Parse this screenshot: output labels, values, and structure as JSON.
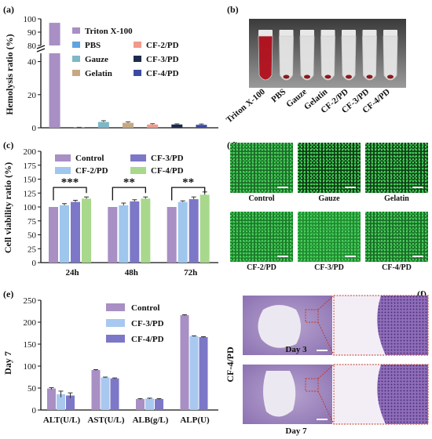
{
  "panels": {
    "a": "(a)",
    "b": "(b)",
    "c": "(c)",
    "d": "(d)",
    "e": "(e)",
    "f": "(f)"
  },
  "colors": {
    "triton": "#a88fc4",
    "pbs": "#5ea4e0",
    "cf2": "#f19a8a",
    "gauze": "#7eb7c7",
    "cf3": "#1c2a4d",
    "gelatin": "#c7a883",
    "cf4": "#3b4aa3",
    "control": "#a88fc4",
    "cf3c": "#7d77c8",
    "cf2c": "#9fc6ec",
    "cf4c": "#a8d88c",
    "e_control": "#a88fc4",
    "e_cf3": "#a8c8ef",
    "e_cf4": "#7d77c8"
  },
  "photo_b": {
    "tube_labels": [
      "Triton X-100",
      "PBS",
      "Gauze",
      "Gelatin",
      "CF-2/PD",
      "CF-3/PD",
      "CF-4/PD"
    ]
  },
  "photo_d": {
    "captions": [
      "Control",
      "Gauze",
      "Gelatin",
      "CF-2/PD",
      "CF-3/PD",
      "CF-4/PD"
    ]
  },
  "photo_f": {
    "side_label": "CF-4/PD",
    "rows": [
      "Day 3",
      "Day 7"
    ]
  },
  "chart_data": [
    {
      "id": "a",
      "type": "bar",
      "ylabel": "Hemolysis ratio (%)",
      "ylim": [
        0,
        100
      ],
      "broken_axis": true,
      "y_ticks_lower": [
        0,
        20,
        40
      ],
      "y_ticks_upper": [
        80,
        90,
        100
      ],
      "categories": [
        "Triton X-100",
        "PBS",
        "Gauze",
        "Gelatin",
        "CF-2/PD",
        "CF-3/PD",
        "CF-4/PD"
      ],
      "values": [
        97,
        0.2,
        3.5,
        3.0,
        2.0,
        2.0,
        1.8
      ],
      "errors": [
        1.5,
        0.1,
        0.8,
        0.6,
        0.5,
        0.4,
        0.5
      ],
      "legend": [
        "Triton X-100",
        "PBS",
        "CF-2/PD",
        "Gauze",
        "CF-3/PD",
        "Gelatin",
        "CF-4/PD"
      ],
      "legend_placement": "top-right"
    },
    {
      "id": "c",
      "type": "bar",
      "ylabel": "Cell viability ratio (%)",
      "ylim": [
        0,
        200
      ],
      "y_ticks": [
        0,
        25,
        50,
        75,
        100,
        125,
        150,
        175,
        200
      ],
      "categories": [
        "24h",
        "48h",
        "72h"
      ],
      "series": [
        {
          "name": "Control",
          "values": [
            100,
            100,
            100
          ],
          "errors": [
            0,
            0,
            0
          ]
        },
        {
          "name": "CF-2/PD",
          "values": [
            103,
            103,
            109
          ],
          "errors": [
            3,
            4,
            2
          ]
        },
        {
          "name": "CF-3/PD",
          "values": [
            109,
            110,
            114
          ],
          "errors": [
            3,
            3,
            4
          ]
        },
        {
          "name": "CF-4/PD",
          "values": [
            115,
            115,
            122
          ],
          "errors": [
            3,
            3,
            5
          ]
        }
      ],
      "significance": [
        "***",
        "**",
        "**"
      ],
      "legend_placement": "top"
    },
    {
      "id": "e",
      "type": "bar",
      "ylabel": "Day 7",
      "ylim": [
        0,
        250
      ],
      "y_ticks": [
        0,
        50,
        100,
        150,
        200,
        250
      ],
      "categories": [
        "ALT(U/L)",
        "AST(U/L)",
        "ALB(g/L)",
        "ALP(U)"
      ],
      "series": [
        {
          "name": "Control",
          "values": [
            49,
            91,
            25,
            216
          ],
          "errors": [
            2,
            1,
            1,
            1
          ]
        },
        {
          "name": "CF-3/PD",
          "values": [
            36,
            74,
            26,
            168
          ],
          "errors": [
            7,
            1,
            1,
            1
          ]
        },
        {
          "name": "CF-4/PD",
          "values": [
            33,
            72,
            25,
            166
          ],
          "errors": [
            6,
            1,
            1,
            1
          ]
        }
      ],
      "legend_placement": "top-right"
    }
  ]
}
